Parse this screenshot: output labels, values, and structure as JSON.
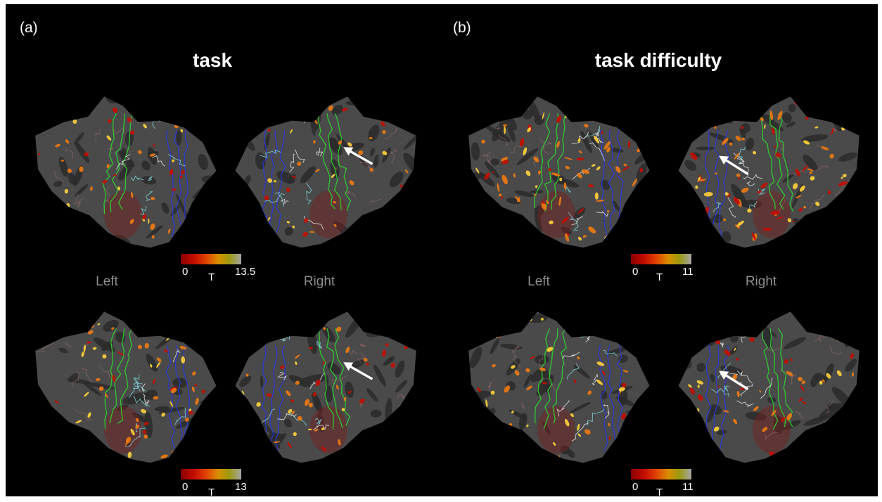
{
  "panels": [
    {
      "letter": "(a)",
      "title": "task",
      "hemispheres": {
        "left": "Left",
        "right": "Right"
      },
      "colorbars": [
        {
          "min": "0",
          "max": "13.5",
          "var": "T"
        },
        {
          "min": "0",
          "max": "13",
          "var": "T"
        }
      ]
    },
    {
      "letter": "(b)",
      "title": "task difficulty",
      "hemispheres": {
        "left": "Left",
        "right": "Right"
      },
      "colorbars": [
        {
          "min": "0",
          "max": "11",
          "var": "T"
        },
        {
          "min": "0",
          "max": "11",
          "var": "T"
        }
      ]
    }
  ],
  "colors": {
    "background": "#000000",
    "cortex_gyri": "#4a4a4a",
    "cortex_sulci": "#2a2a2a",
    "activation_low": "#c40d00",
    "activation_high": "#ffd23a",
    "roi_green": "#2fd030",
    "roi_blue": "#2a36d8",
    "roi_cyan": "#7fd6e0",
    "roi_white": "#e8e8e8",
    "arrow": "#ffffff"
  },
  "icons": {
    "arrow": "white-arrow-icon"
  }
}
